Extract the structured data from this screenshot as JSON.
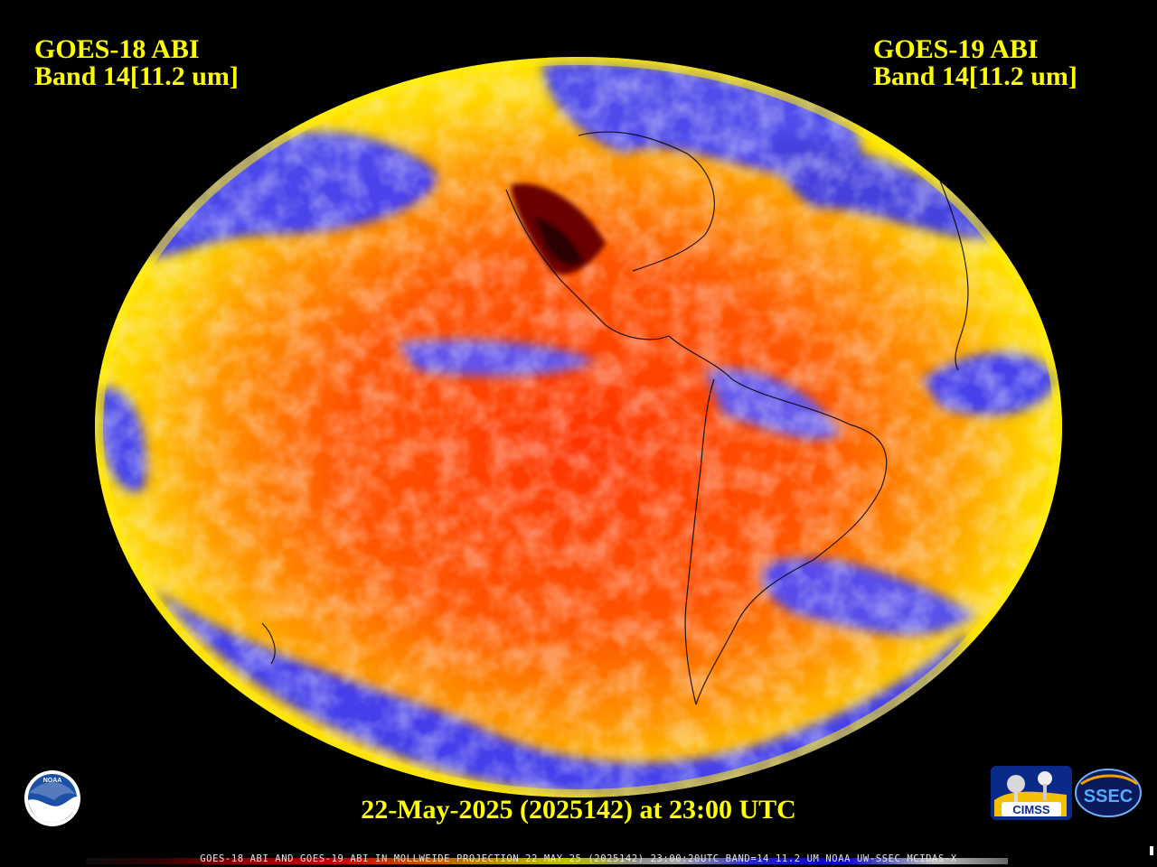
{
  "header": {
    "left_line1": "GOES-18 ABI",
    "left_line2": "Band 14[11.2 um]",
    "right_line1": "GOES-19 ABI",
    "right_line2": "Band 14[11.2 um]"
  },
  "date_caption": "22-May-2025 (2025142) at 23:00 UTC",
  "footer_text": "GOES-18 ABI AND GOES-19 ABI IN MOLLWEIDE PROJECTION 22 MAY 25 (2025142) 23:00:20UTC BAND=14 11.2 UM NOAA UW-SSEC MCIDAS-X",
  "logos": {
    "noaa": "NOAA",
    "cimss": "CIMSS",
    "ssec": "SSEC"
  },
  "colors": {
    "text": "#ffff00",
    "background": "#000000",
    "warm": "#ff4000",
    "cold": "#2020ff"
  }
}
